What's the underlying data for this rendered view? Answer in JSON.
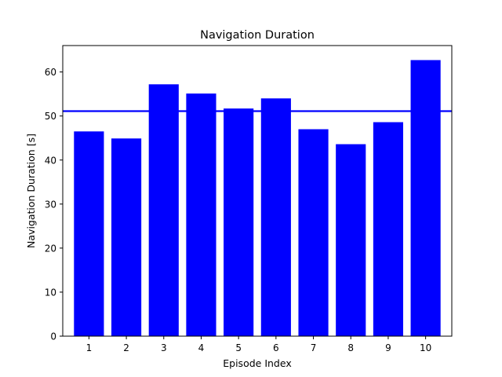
{
  "chart_data": {
    "type": "bar",
    "title": "Navigation Duration",
    "xlabel": "Episode Index",
    "ylabel": "Navigation Duration [s]",
    "categories": [
      "1",
      "2",
      "3",
      "4",
      "5",
      "6",
      "7",
      "8",
      "9",
      "10"
    ],
    "values": [
      46.5,
      44.9,
      57.2,
      55.1,
      51.7,
      54.0,
      47.0,
      43.6,
      48.6,
      62.7
    ],
    "mean_line": 51.1,
    "ylim": [
      0,
      66
    ],
    "yticks": [
      0,
      10,
      20,
      30,
      40,
      50,
      60
    ],
    "bar_color": "#0000ff",
    "line_color": "#0000ff",
    "grid": false,
    "legend": "none"
  }
}
